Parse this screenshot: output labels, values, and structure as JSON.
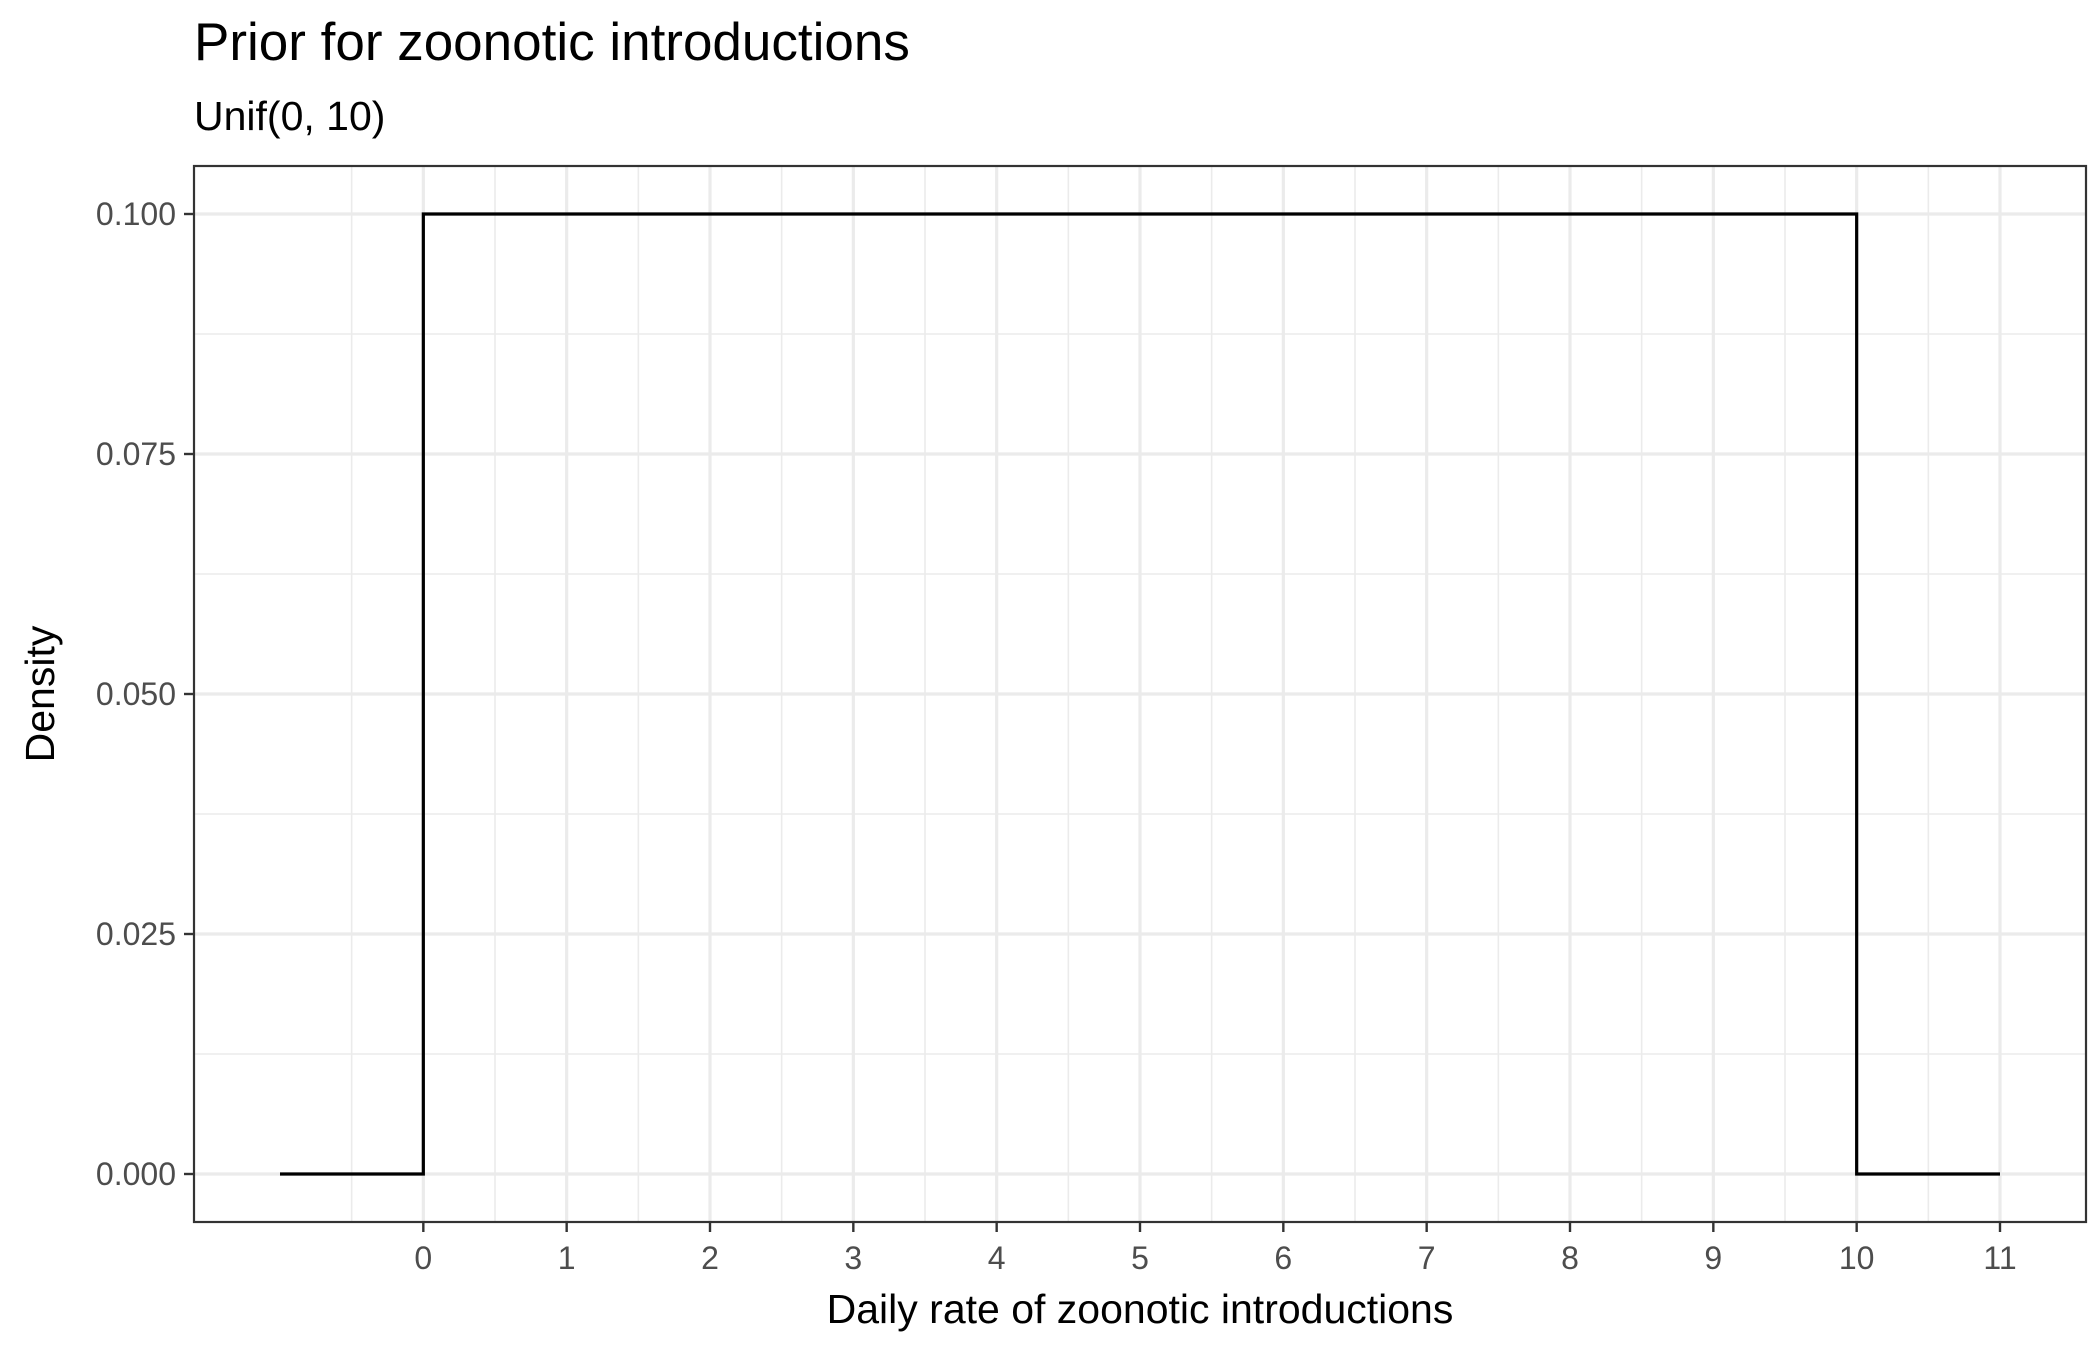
{
  "chart_data": {
    "type": "line",
    "title": "Prior for zoonotic introductions",
    "subtitle": "Unif(0, 10)",
    "xlabel": "Daily rate of zoonotic introductions",
    "ylabel": "Density",
    "xlim": [
      -1.6,
      11.6
    ],
    "ylim": [
      -0.005,
      0.105
    ],
    "x_ticks": [
      0,
      1,
      2,
      3,
      4,
      5,
      6,
      7,
      8,
      9,
      10,
      11
    ],
    "x_tick_labels": [
      "0",
      "1",
      "2",
      "3",
      "4",
      "5",
      "6",
      "7",
      "8",
      "9",
      "10",
      "11"
    ],
    "y_ticks": [
      0,
      0.025,
      0.05,
      0.075,
      0.1
    ],
    "y_tick_labels": [
      "0.000",
      "0.025",
      "0.050",
      "0.075",
      "0.100"
    ],
    "grid": true,
    "series": [
      {
        "x": [
          -1,
          0,
          0,
          10,
          10,
          11
        ],
        "y": [
          0,
          0,
          0.1,
          0.1,
          0,
          0
        ],
        "color": "#000000"
      }
    ]
  }
}
